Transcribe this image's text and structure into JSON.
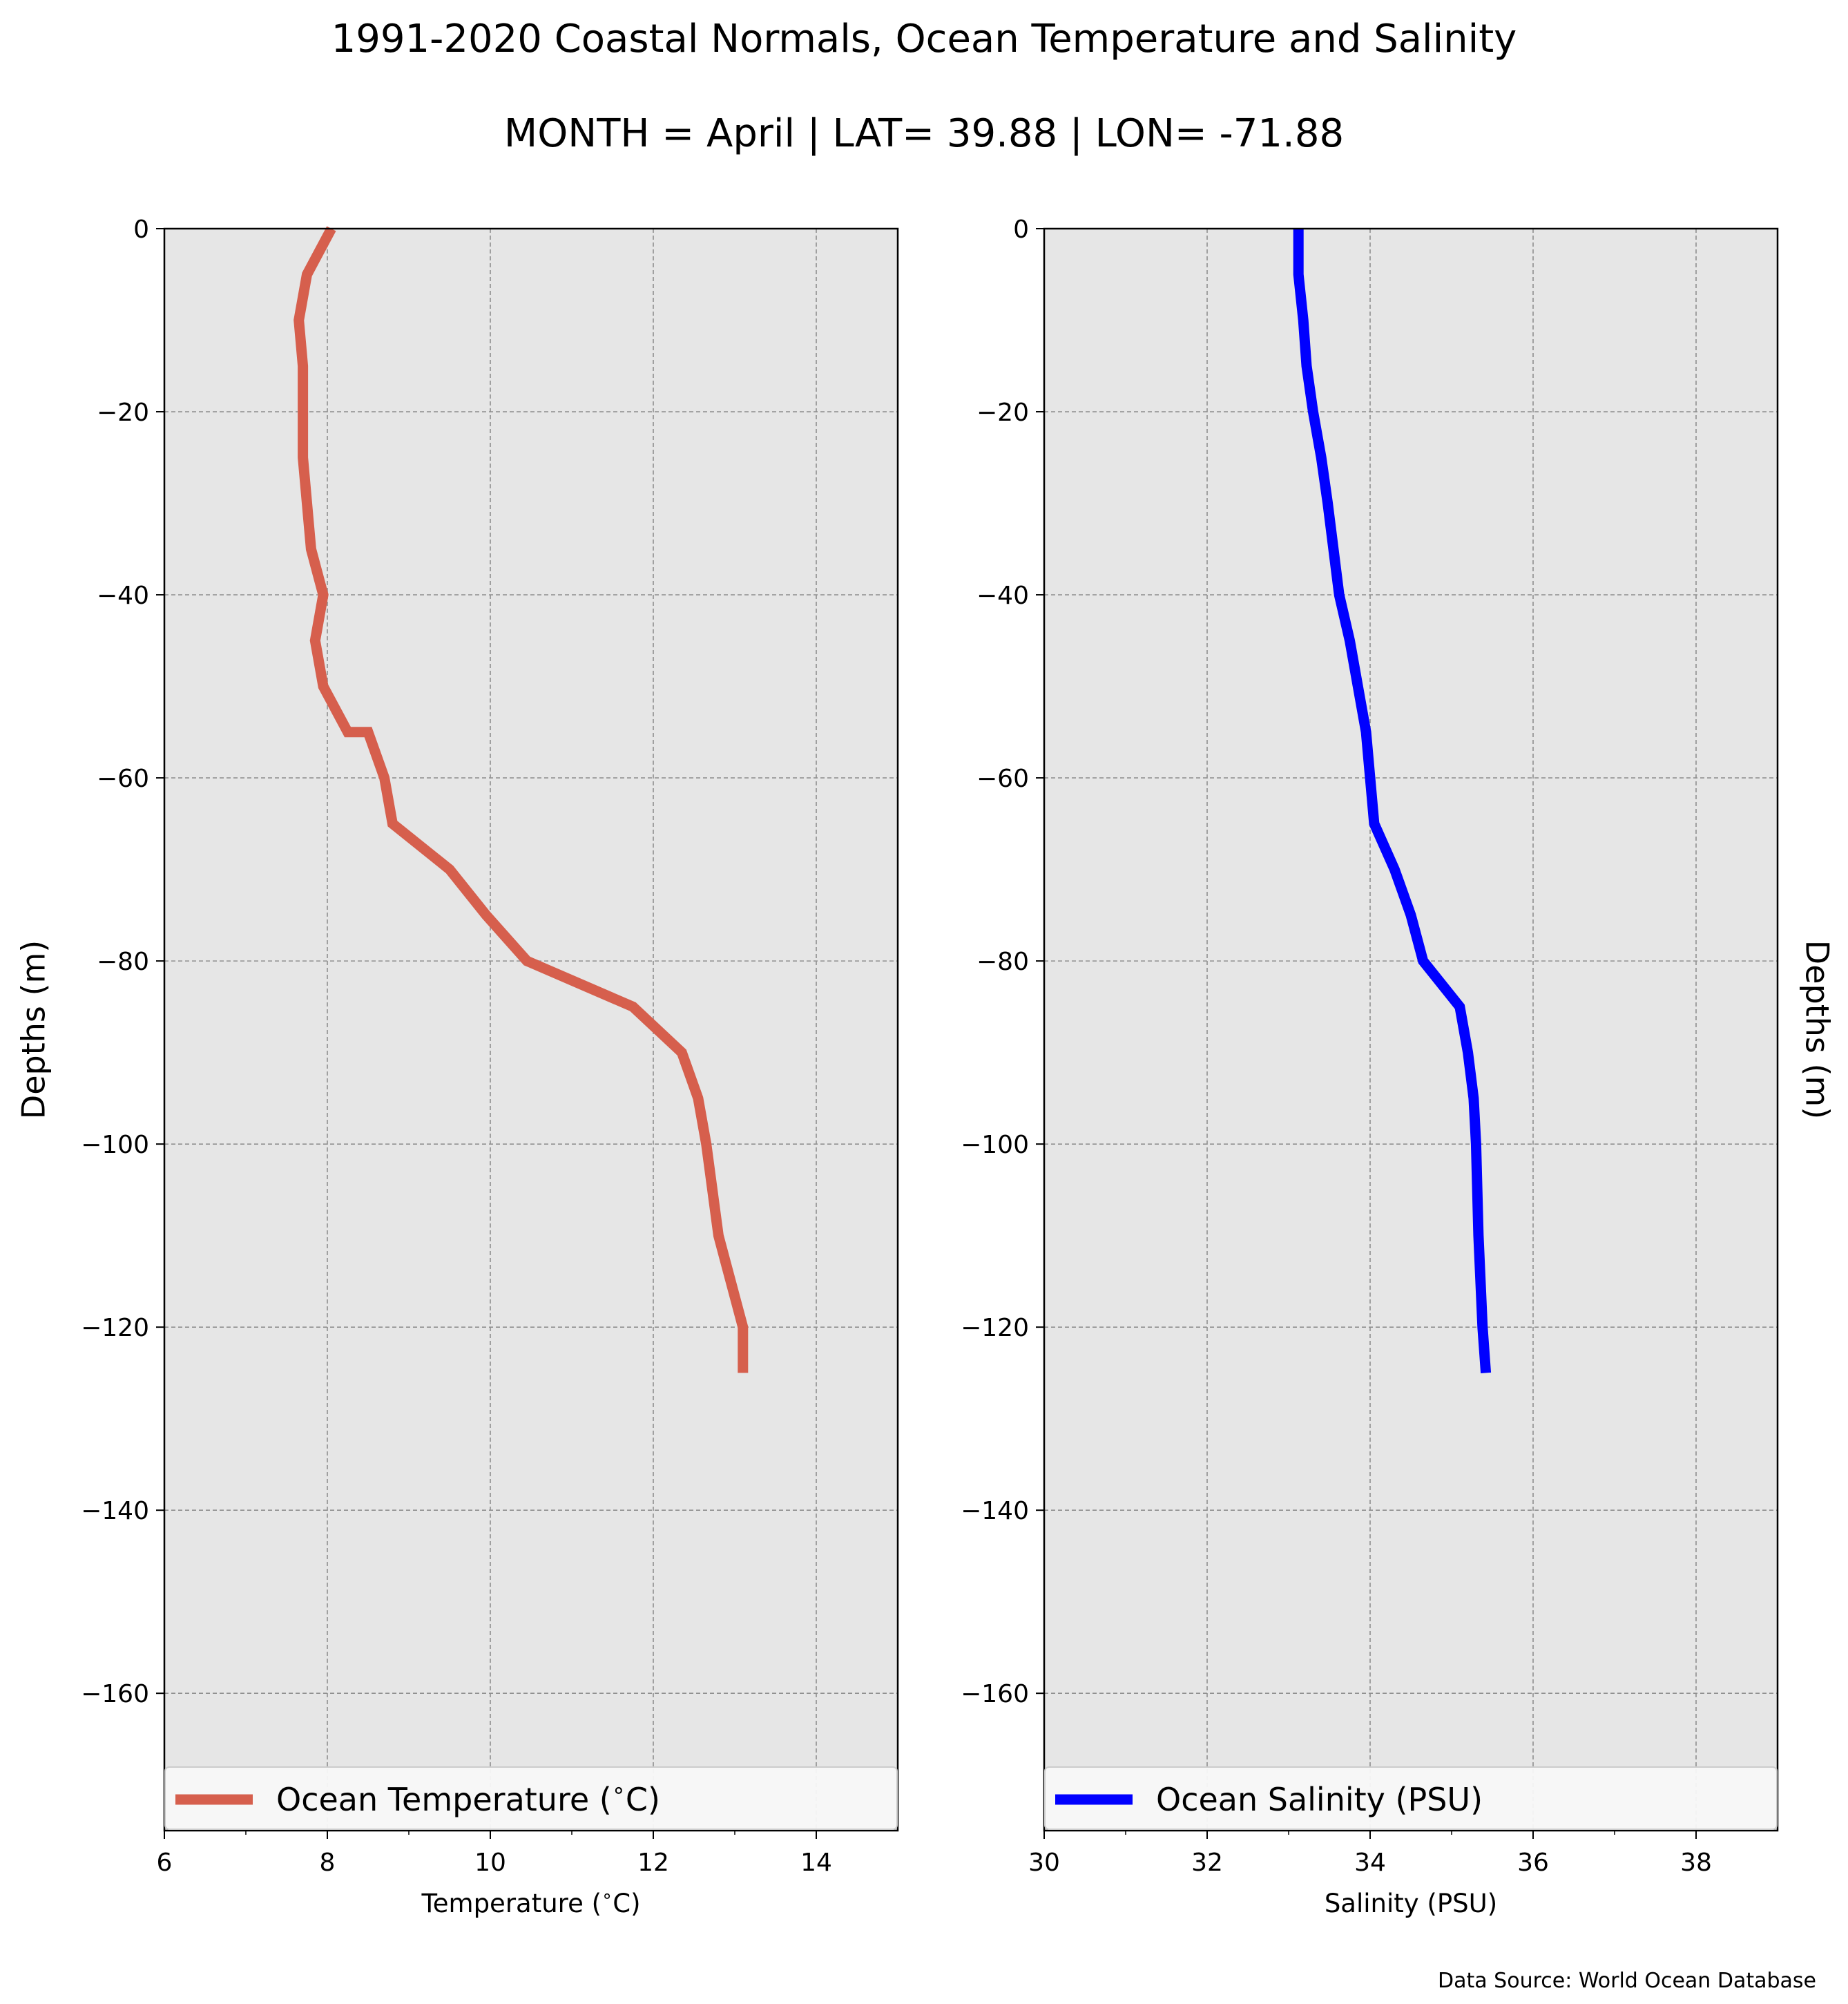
{
  "title": "1991-2020 Coastal Normals, Ocean Temperature and Salinity",
  "subtitle": "MONTH = April | LAT= 39.88 | LON= -71.88",
  "source": "Data Source: World Ocean Database",
  "chart_data": [
    {
      "type": "line",
      "xlabel": "Temperature ($^\\circ$C)",
      "ylabel": "Depths (m)",
      "xlim": [
        6,
        15
      ],
      "ylim": [
        -175,
        0
      ],
      "xticks": [
        6,
        8,
        10,
        12,
        14
      ],
      "yticks": [
        0,
        -20,
        -40,
        -60,
        -80,
        -100,
        -120,
        -140,
        -160
      ],
      "grid": true,
      "legend_position": "bottom",
      "series": [
        {
          "name": "Ocean Temperature ($^\\circ$C)",
          "color": "#d65f4d",
          "x": [
            8.05,
            7.75,
            7.65,
            7.7,
            7.7,
            7.7,
            7.75,
            7.8,
            7.95,
            7.85,
            7.95,
            8.25,
            8.5,
            8.7,
            8.8,
            9.5,
            9.95,
            10.45,
            11.75,
            12.35,
            12.55,
            12.65,
            12.8,
            12.95,
            13.1,
            13.1
          ],
          "y": [
            0,
            -5,
            -10,
            -15,
            -20,
            -25,
            -30,
            -35,
            -40,
            -45,
            -50,
            -55,
            -55,
            -60,
            -65,
            -70,
            -75,
            -80,
            -85,
            -90,
            -95,
            -100,
            -110,
            -115,
            -120,
            -125
          ]
        }
      ]
    },
    {
      "type": "line",
      "xlabel": "Salinity (PSU)",
      "ylabel": "Depths (m)",
      "xlim": [
        30,
        39
      ],
      "ylim": [
        -175,
        0
      ],
      "xticks": [
        30,
        32,
        34,
        36,
        38
      ],
      "yticks": [
        0,
        -20,
        -40,
        -60,
        -80,
        -100,
        -120,
        -140,
        -160
      ],
      "grid": true,
      "legend_position": "bottom",
      "series": [
        {
          "name": "Ocean Salinity (PSU)",
          "color": "#0000ff",
          "x": [
            33.12,
            33.12,
            33.18,
            33.22,
            33.3,
            33.4,
            33.48,
            33.55,
            33.62,
            33.75,
            33.85,
            33.95,
            34.05,
            34.3,
            34.5,
            34.65,
            35.1,
            35.2,
            35.27,
            35.3,
            35.33,
            35.38,
            35.42
          ],
          "y": [
            0,
            -5,
            -10,
            -15,
            -20,
            -25,
            -30,
            -35,
            -40,
            -45,
            -50,
            -55,
            -65,
            -70,
            -75,
            -80,
            -85,
            -90,
            -95,
            -100,
            -110,
            -120,
            -125
          ]
        }
      ]
    }
  ]
}
